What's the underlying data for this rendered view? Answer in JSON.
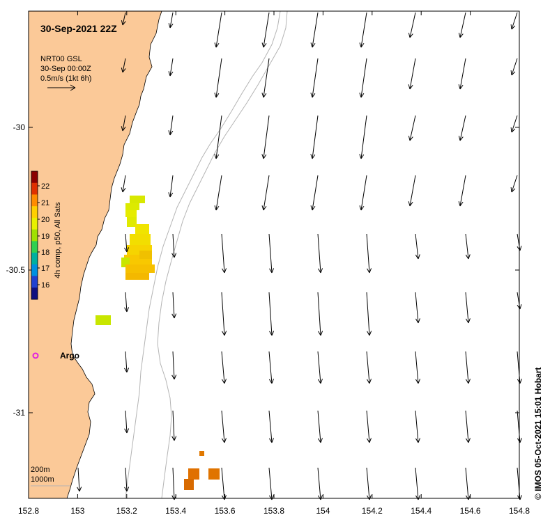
{
  "map": {
    "title": "30-Sep-2021 22Z",
    "velocity_legend": {
      "line1": "NRT00 GSL",
      "line2": "30-Sep 00:00Z",
      "line3": "0.5m/s (1kt 6h)"
    },
    "colorbar": {
      "label": "4h comp, p50, All Sats",
      "ticks": [
        "22",
        "21",
        "20",
        "19",
        "18",
        "17",
        "16"
      ],
      "colors": [
        "#8b0000",
        "#e03000",
        "#ff8c00",
        "#ffd000",
        "#e8f000",
        "#a0e000",
        "#30d050",
        "#00b0a0",
        "#0090e0",
        "#2040d0",
        "#101080"
      ]
    },
    "platform_label": "Argo",
    "bathymetry": {
      "line1": "200m",
      "line2": "1000m"
    },
    "x_axis": {
      "ticks": [
        "152.8",
        "153",
        "153.2",
        "153.4",
        "153.6",
        "153.8",
        "154",
        "154.2",
        "154.4",
        "154.6",
        "154.8"
      ]
    },
    "y_axis": {
      "ticks": [
        "-30",
        "-30.5",
        "-31"
      ]
    },
    "credit": "© IMOS 05-Oct-2021 15:01 Hobart",
    "colors": {
      "land": "#fbc998",
      "ocean": "#ffffff",
      "argo_marker": "#e020e0",
      "isobath": "#b4b4b4"
    }
  }
}
